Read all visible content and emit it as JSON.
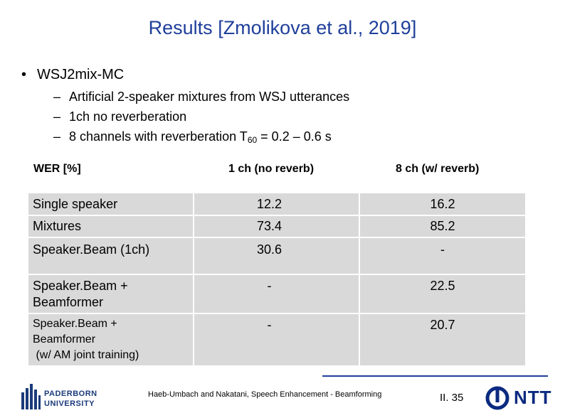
{
  "title": "Results [Zmolikova et al., 2019]",
  "bullet": "WSJ2mix-MC",
  "sub_bullets": {
    "s1": "Artificial 2-speaker mixtures from WSJ utterances",
    "s2": "1ch no reverberation",
    "s3_pre": "8 channels with reverberation T",
    "s3_sub": "60",
    "s3_post": " = 0.2 – 0.6 s"
  },
  "table": {
    "headers": [
      "WER [%]",
      "1 ch (no reverb)",
      "8 ch (w/ reverb)"
    ],
    "rows": [
      {
        "label": "Single speaker",
        "c1": "12.2",
        "c2": "16.2"
      },
      {
        "label": "Mixtures",
        "c1": "73.4",
        "c2": "85.2"
      },
      {
        "label": "Speaker.Beam (1ch)",
        "c1": "30.6",
        "c2": "-"
      },
      {
        "label_l1": "Speaker.Beam +",
        "label_l2": "Beamformer",
        "c1": "-",
        "c2": "22.5"
      },
      {
        "label_l1": "Speaker.Beam +",
        "label_l2": "Beamformer",
        "label_l3": " (w/ AM joint training)",
        "c1": "-",
        "c2": "20.7"
      }
    ]
  },
  "footer": {
    "university_line1": "PADERBORN",
    "university_line2": "UNIVERSITY",
    "citation": "Haeb-Umbach and Nakatani, Speech Enhancement - Beamforming",
    "page": "II. 35",
    "company": "NTT"
  },
  "colors": {
    "title": "#1f3f9a",
    "table_fill": "#d9d9d9",
    "rule": "#1f3f9a",
    "ntt": "#0b2a80"
  }
}
